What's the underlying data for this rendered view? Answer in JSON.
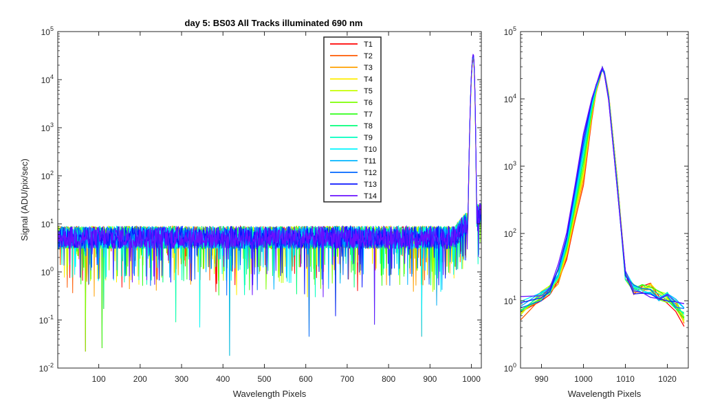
{
  "chart_data": [
    {
      "type": "line",
      "title": "day 5: BS03   All Tracks illuminated   690 nm",
      "xlabel": "Wavelength Pixels",
      "ylabel": "Signal (ADU/pix/sec)",
      "xlim": [
        1,
        1024
      ],
      "ylim": [
        0.01,
        100000
      ],
      "yscale": "log",
      "xticks": [
        "100",
        "200",
        "300",
        "400",
        "500",
        "600",
        "700",
        "800",
        "900",
        "1000"
      ],
      "yticks": [
        {
          "base": "10",
          "exp": "-2"
        },
        {
          "base": "10",
          "exp": "-1"
        },
        {
          "base": "10",
          "exp": "0"
        },
        {
          "base": "10",
          "exp": "1"
        },
        {
          "base": "10",
          "exp": "2"
        },
        {
          "base": "10",
          "exp": "3"
        },
        {
          "base": "10",
          "exp": "4"
        },
        {
          "base": "10",
          "exp": "5"
        }
      ],
      "legend_position": "top-right",
      "series": [
        {
          "name": "T1",
          "color": "#ff0000"
        },
        {
          "name": "T2",
          "color": "#ff5a00"
        },
        {
          "name": "T3",
          "color": "#ffa000"
        },
        {
          "name": "T4",
          "color": "#ffee00"
        },
        {
          "name": "T5",
          "color": "#c4ff00"
        },
        {
          "name": "T6",
          "color": "#7cff00"
        },
        {
          "name": "T7",
          "color": "#2fff1a"
        },
        {
          "name": "T8",
          "color": "#00ff7a"
        },
        {
          "name": "T9",
          "color": "#00ffc0"
        },
        {
          "name": "T10",
          "color": "#00f6ff"
        },
        {
          "name": "T11",
          "color": "#00b4ff"
        },
        {
          "name": "T12",
          "color": "#0066ff"
        },
        {
          "name": "T13",
          "color": "#0a14ff"
        },
        {
          "name": "T14",
          "color": "#6a10ff"
        }
      ],
      "profile": {
        "noise_level": 5.5,
        "peak_center": 1004.5,
        "peak_value": 30000,
        "dips": [
          {
            "x": 68,
            "y": 0.022
          },
          {
            "x": 108,
            "y": 0.026
          },
          {
            "x": 112,
            "y": 0.17
          },
          {
            "x": 286,
            "y": 0.09
          },
          {
            "x": 344,
            "y": 0.07
          },
          {
            "x": 416,
            "y": 0.018
          },
          {
            "x": 608,
            "y": 0.045
          },
          {
            "x": 672,
            "y": 0.12
          },
          {
            "x": 766,
            "y": 0.08
          },
          {
            "x": 880,
            "y": 0.045
          },
          {
            "x": 916,
            "y": 0.2
          }
        ]
      }
    },
    {
      "type": "line",
      "xlabel": "Wavelength Pixels",
      "xlim": [
        985,
        1025
      ],
      "ylim": [
        1,
        100000
      ],
      "yscale": "log",
      "xticks": [
        "990",
        "1000",
        "1010",
        "1020"
      ],
      "yticks": [
        {
          "base": "10",
          "exp": "0"
        },
        {
          "base": "10",
          "exp": "1"
        },
        {
          "base": "10",
          "exp": "2"
        },
        {
          "base": "10",
          "exp": "3"
        },
        {
          "base": "10",
          "exp": "4"
        },
        {
          "base": "10",
          "exp": "5"
        }
      ],
      "x": [
        985,
        990,
        992,
        994,
        996,
        998,
        1000,
        1002,
        1003,
        1004,
        1004.5,
        1005,
        1006,
        1008,
        1010,
        1012,
        1014,
        1016,
        1018,
        1020,
        1022,
        1024
      ],
      "reference": {
        "red": [
          6,
          12,
          14,
          20,
          40,
          150,
          500,
          5000,
          12000,
          22000,
          28000,
          25000,
          12000,
          700,
          25,
          15,
          16,
          16,
          12,
          11,
          8,
          5
        ],
        "blue": [
          10,
          12,
          16,
          30,
          100,
          500,
          3000,
          10000,
          16000,
          24000,
          28000,
          24000,
          10000,
          500,
          24,
          15,
          14,
          13,
          12,
          12,
          10,
          9
        ]
      }
    }
  ]
}
